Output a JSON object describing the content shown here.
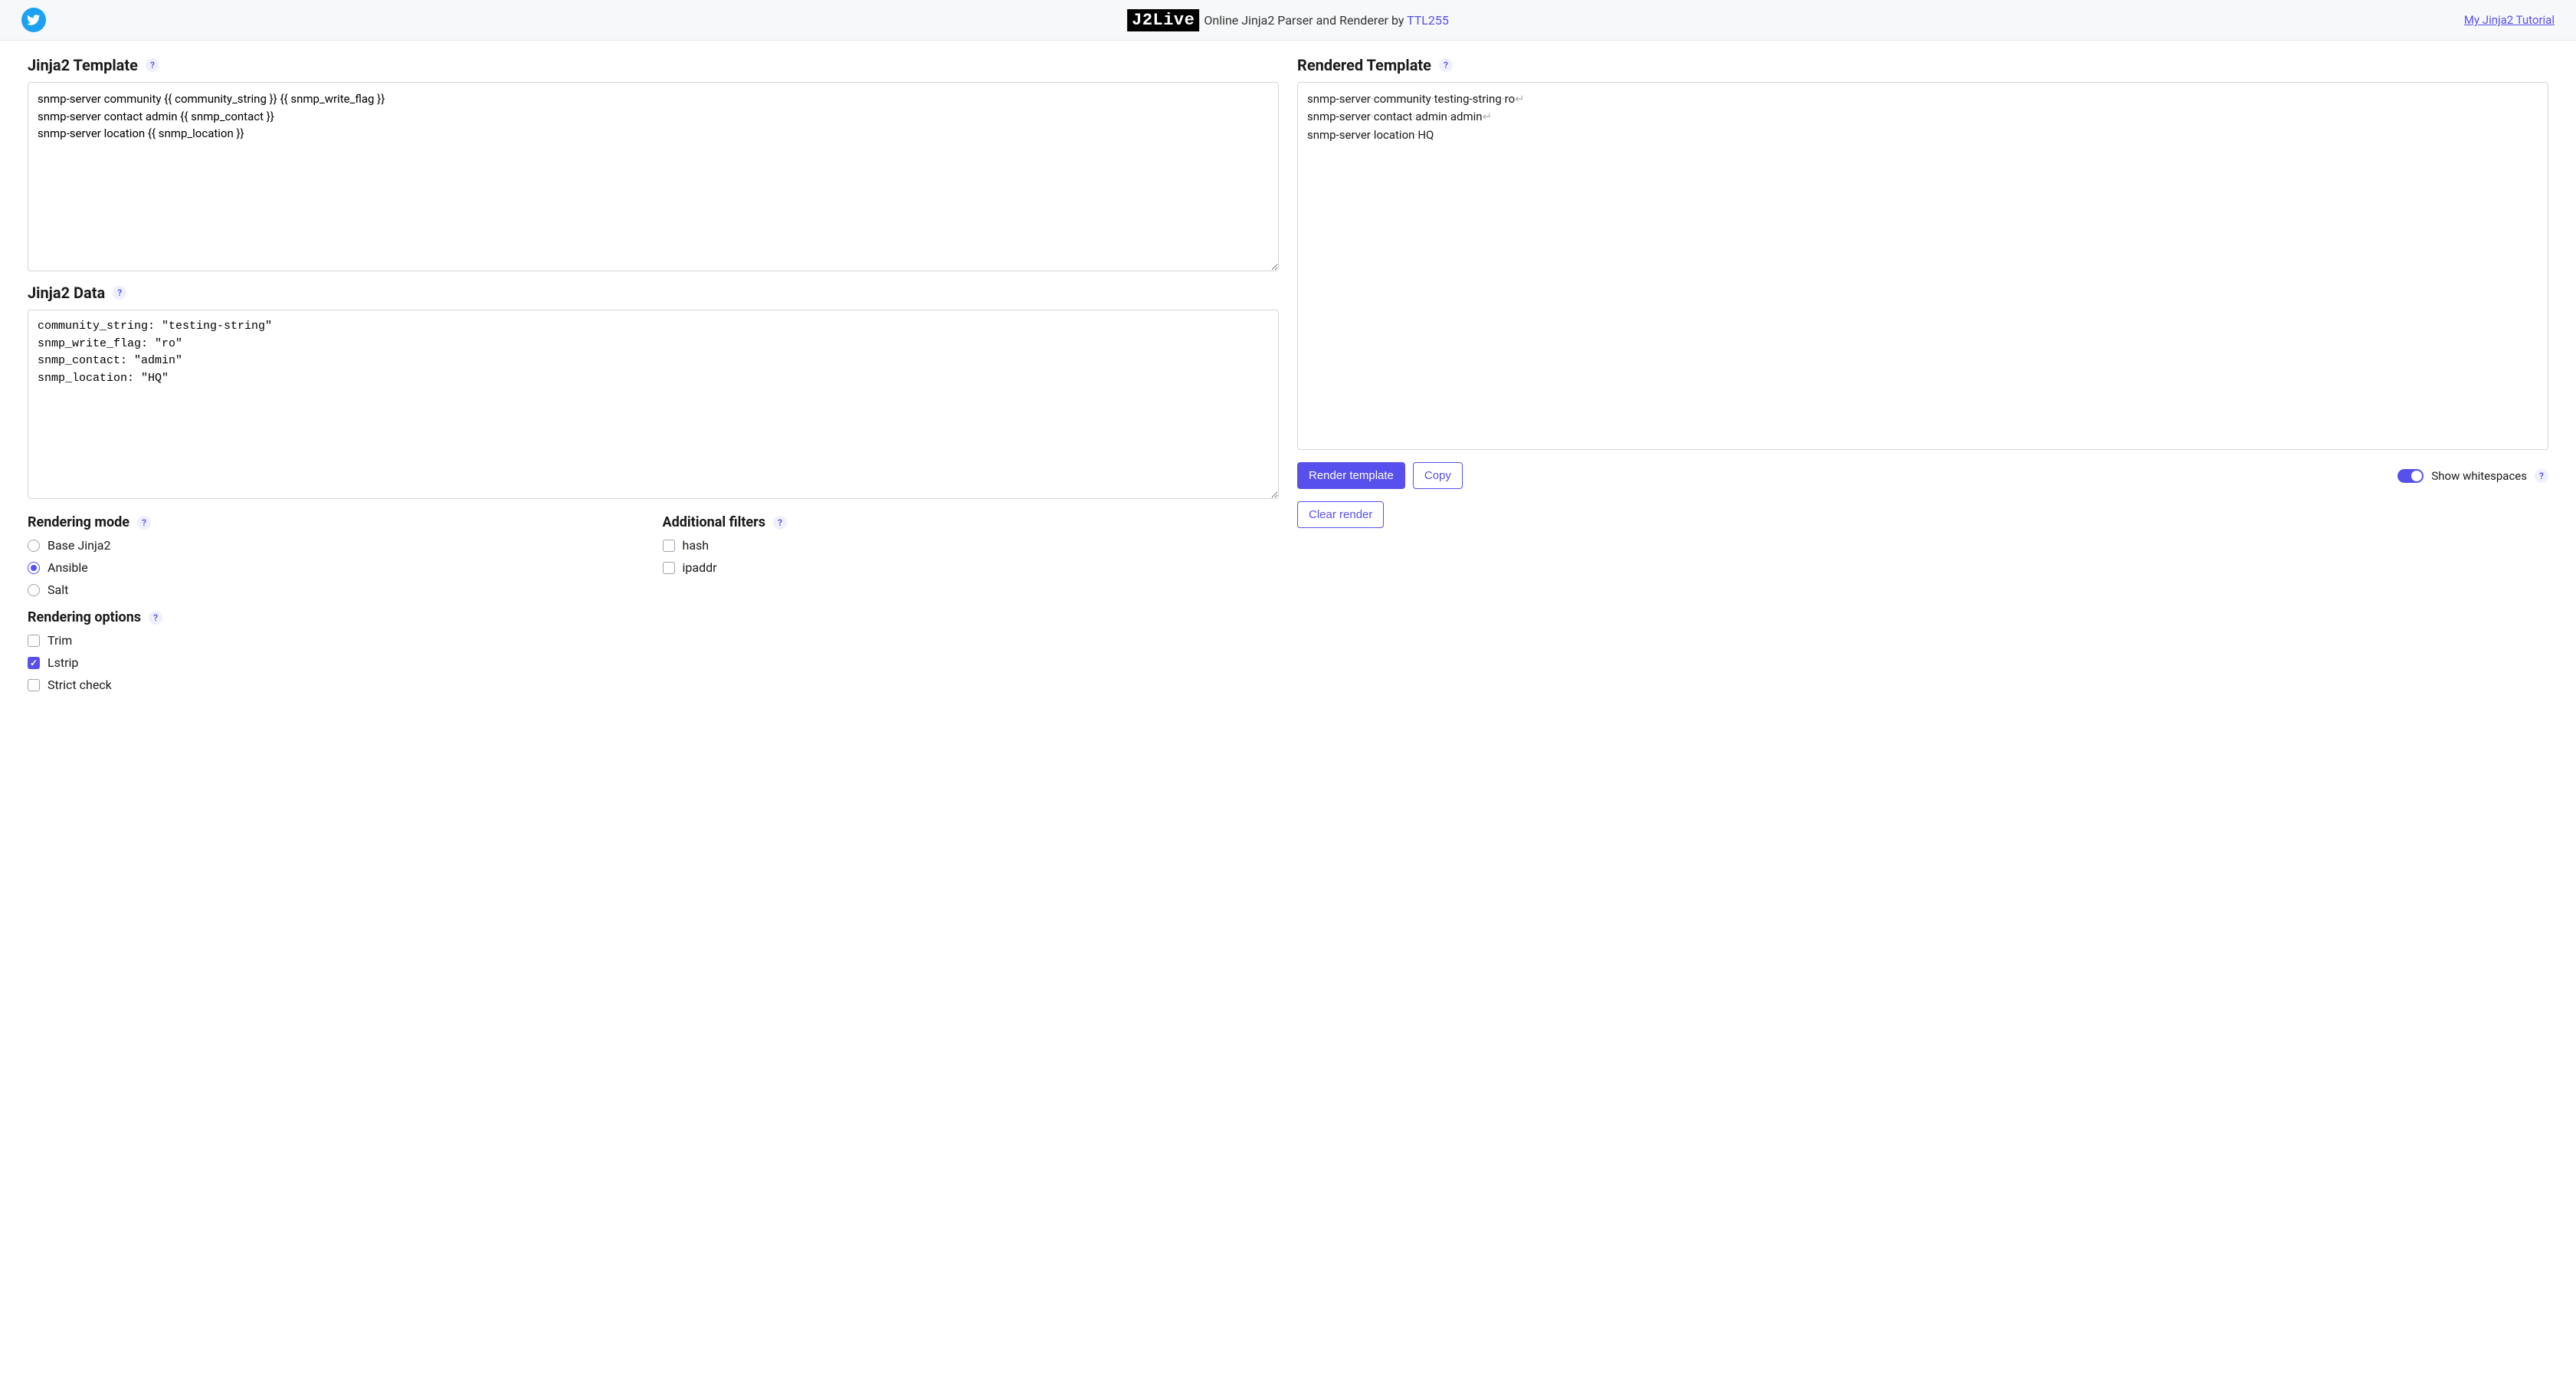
{
  "colors": {
    "accent": "#5850ec",
    "header_bg": "#f7f8fa",
    "border": "#d1d5db",
    "ws_gray": "#b0b0b0",
    "twitter": "#1da1f2"
  },
  "header": {
    "logo_text": "J2Live",
    "tagline_prefix": "Online Jinja2 Parser and Renderer by ",
    "tagline_link": "TTL255",
    "tutorial_link": "My Jinja2 Tutorial"
  },
  "left": {
    "template_title": "Jinja2 Template",
    "template_value": "snmp-server community {{ community_string }} {{ snmp_write_flag }}\nsnmp-server contact admin {{ snmp_contact }}\nsnmp-server location {{ snmp_location }}",
    "data_title": "Jinja2 Data",
    "data_value": "community_string: \"testing-string\"\nsnmp_write_flag: \"ro\"\nsnmp_contact: \"admin\"\nsnmp_location: \"HQ\"",
    "rendering_mode_title": "Rendering mode",
    "rendering_modes": [
      {
        "label": "Base Jinja2",
        "checked": false
      },
      {
        "label": "Ansible",
        "checked": true
      },
      {
        "label": "Salt",
        "checked": false
      }
    ],
    "additional_filters_title": "Additional filters",
    "filters": [
      {
        "label": "hash",
        "checked": false
      },
      {
        "label": "ipaddr",
        "checked": false
      }
    ],
    "rendering_options_title": "Rendering options",
    "options": [
      {
        "label": "Trim",
        "checked": false
      },
      {
        "label": "Lstrip",
        "checked": true
      },
      {
        "label": "Strict check",
        "checked": false
      }
    ]
  },
  "right": {
    "title": "Rendered Template",
    "lines": [
      [
        "snmp-server",
        "community",
        "testing-string",
        "ro"
      ],
      [
        "snmp-server",
        "contact",
        "admin",
        "admin"
      ],
      [
        "snmp-server",
        "location",
        "HQ"
      ]
    ],
    "render_btn": "Render template",
    "copy_btn": "Copy",
    "clear_btn": "Clear render",
    "show_ws_label": "Show whitespaces",
    "show_ws_on": true
  },
  "help_glyph": "?"
}
